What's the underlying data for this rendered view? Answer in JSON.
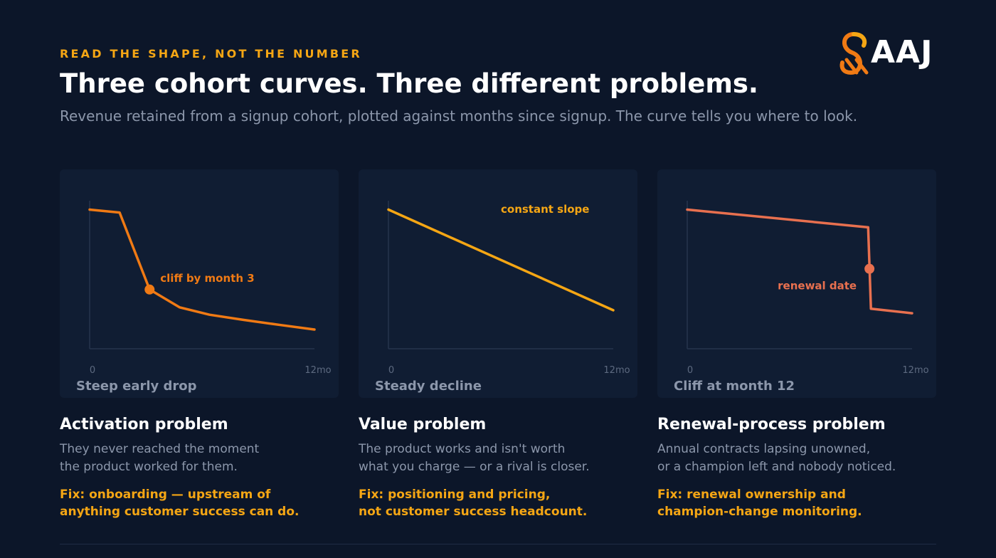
{
  "header": {
    "eyebrow": "READ THE SHAPE, NOT THE NUMBER",
    "title": "Three cohort curves. Three different problems.",
    "subtitle": "Revenue retained from a signup cohort, plotted against months since signup. The curve tells you where to look."
  },
  "logo": {
    "text": "AAJ",
    "icon": "aaj-swirl-logo-icon"
  },
  "colors": {
    "background": "#0c1629",
    "card": "#101d33",
    "accent": "#f5a614",
    "muted": "#8c97ab",
    "series_activation": "#f07a14",
    "series_value": "#f5a614",
    "series_renewal": "#e8704f"
  },
  "chart_data": [
    {
      "type": "line",
      "caption": "Steep early drop",
      "x_tick_labels": [
        "0",
        "12mo"
      ],
      "xlim": [
        0,
        12
      ],
      "ylim": [
        0,
        100
      ],
      "axis_values_labeled": false,
      "grid": false,
      "series": [
        {
          "color": "#f07a14",
          "x": [
            0,
            1.6,
            3.2,
            4.8,
            6.4,
            8.2,
            10.2,
            12
          ],
          "y": [
            94,
            92,
            40,
            28,
            23,
            19.5,
            16,
            13
          ]
        }
      ],
      "annotation": {
        "text": "cliff by month 3",
        "x": 3.2,
        "y": 40
      }
    },
    {
      "type": "line",
      "caption": "Steady decline",
      "x_tick_labels": [
        "0",
        "12mo"
      ],
      "xlim": [
        0,
        12
      ],
      "ylim": [
        0,
        100
      ],
      "axis_values_labeled": false,
      "grid": false,
      "series": [
        {
          "color": "#f5a614",
          "x": [
            0,
            12
          ],
          "y": [
            94,
            26
          ]
        }
      ],
      "annotation": {
        "text": "constant slope",
        "x": 6,
        "y": 60
      }
    },
    {
      "type": "line",
      "caption": "Cliff at month 12",
      "x_tick_labels": [
        "0",
        "12mo"
      ],
      "xlim": [
        0,
        12.3
      ],
      "ylim": [
        0,
        100
      ],
      "axis_values_labeled": false,
      "grid": false,
      "series": [
        {
          "color": "#e8704f",
          "x": [
            0,
            9.9,
            10.05,
            12.3
          ],
          "y": [
            94,
            82,
            27,
            24
          ]
        }
      ],
      "annotation": {
        "text": "renewal date",
        "x": 9.97,
        "y": 54
      }
    }
  ],
  "columns": [
    {
      "heading": "Activation problem",
      "description": "They never reached the moment\nthe product worked for them.",
      "fix": "Fix: onboarding — upstream of\nanything customer success can do."
    },
    {
      "heading": "Value problem",
      "description": "The product works and isn't worth\nwhat you charge — or a rival is closer.",
      "fix": "Fix: positioning and pricing,\nnot customer success headcount."
    },
    {
      "heading": "Renewal-process problem",
      "description": "Annual contracts lapsing unowned,\nor a champion left and nobody noticed.",
      "fix": "Fix: renewal ownership and\nchampion-change monitoring."
    }
  ]
}
